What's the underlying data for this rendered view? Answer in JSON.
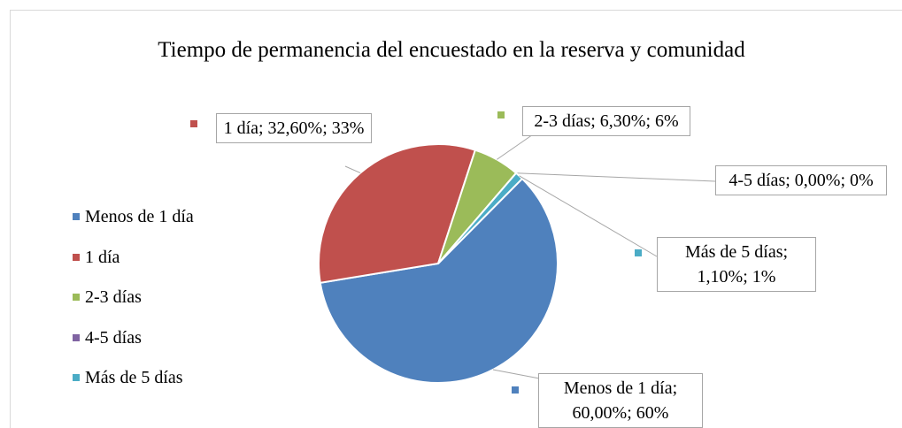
{
  "chart_data": {
    "type": "pie",
    "title": "Tiempo de permanencia del encuestado en la reserva y comunidad",
    "categories": [
      "Menos de 1 día",
      "1 día",
      "2-3 días",
      "4-5 días",
      "Más de 5 días"
    ],
    "values": [
      60.0,
      32.6,
      6.3,
      0.0,
      1.1
    ],
    "value_labels": [
      "Menos de 1 día; 60,00%; 60%",
      "1 día; 32,60%; 33%",
      "2-3 días; 6,30%; 6%",
      "4-5 días; 0,00%; 0%",
      "Más de 5 días; 1,10%; 1%"
    ],
    "colors": [
      "#4f81bd",
      "#c0504d",
      "#9bbb59",
      "#8064a2",
      "#4bacc6"
    ],
    "legend": "left"
  }
}
